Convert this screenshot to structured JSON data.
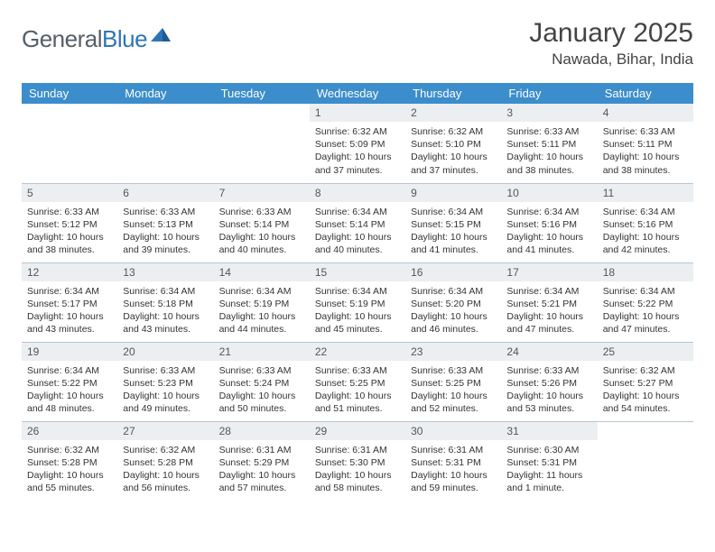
{
  "brand": {
    "name_a": "General",
    "name_b": "Blue"
  },
  "header": {
    "title": "January 2025",
    "location": "Nawada, Bihar, India"
  },
  "styling": {
    "header_bg": "#3c8dcc",
    "header_fg": "#ffffff",
    "daynum_bg": "#eceff1",
    "border_color": "#b8c4d0",
    "body_bg": "#ffffff",
    "title_font_size": 30,
    "location_font_size": 17,
    "cell_font_size": 10.5
  },
  "weekdays": [
    "Sunday",
    "Monday",
    "Tuesday",
    "Wednesday",
    "Thursday",
    "Friday",
    "Saturday"
  ],
  "weeks": [
    [
      {
        "n": "",
        "lines": [
          "",
          "",
          "",
          ""
        ]
      },
      {
        "n": "",
        "lines": [
          "",
          "",
          "",
          ""
        ]
      },
      {
        "n": "",
        "lines": [
          "",
          "",
          "",
          ""
        ]
      },
      {
        "n": "1",
        "lines": [
          "Sunrise: 6:32 AM",
          "Sunset: 5:09 PM",
          "Daylight: 10 hours",
          "and 37 minutes."
        ]
      },
      {
        "n": "2",
        "lines": [
          "Sunrise: 6:32 AM",
          "Sunset: 5:10 PM",
          "Daylight: 10 hours",
          "and 37 minutes."
        ]
      },
      {
        "n": "3",
        "lines": [
          "Sunrise: 6:33 AM",
          "Sunset: 5:11 PM",
          "Daylight: 10 hours",
          "and 38 minutes."
        ]
      },
      {
        "n": "4",
        "lines": [
          "Sunrise: 6:33 AM",
          "Sunset: 5:11 PM",
          "Daylight: 10 hours",
          "and 38 minutes."
        ]
      }
    ],
    [
      {
        "n": "5",
        "lines": [
          "Sunrise: 6:33 AM",
          "Sunset: 5:12 PM",
          "Daylight: 10 hours",
          "and 38 minutes."
        ]
      },
      {
        "n": "6",
        "lines": [
          "Sunrise: 6:33 AM",
          "Sunset: 5:13 PM",
          "Daylight: 10 hours",
          "and 39 minutes."
        ]
      },
      {
        "n": "7",
        "lines": [
          "Sunrise: 6:33 AM",
          "Sunset: 5:14 PM",
          "Daylight: 10 hours",
          "and 40 minutes."
        ]
      },
      {
        "n": "8",
        "lines": [
          "Sunrise: 6:34 AM",
          "Sunset: 5:14 PM",
          "Daylight: 10 hours",
          "and 40 minutes."
        ]
      },
      {
        "n": "9",
        "lines": [
          "Sunrise: 6:34 AM",
          "Sunset: 5:15 PM",
          "Daylight: 10 hours",
          "and 41 minutes."
        ]
      },
      {
        "n": "10",
        "lines": [
          "Sunrise: 6:34 AM",
          "Sunset: 5:16 PM",
          "Daylight: 10 hours",
          "and 41 minutes."
        ]
      },
      {
        "n": "11",
        "lines": [
          "Sunrise: 6:34 AM",
          "Sunset: 5:16 PM",
          "Daylight: 10 hours",
          "and 42 minutes."
        ]
      }
    ],
    [
      {
        "n": "12",
        "lines": [
          "Sunrise: 6:34 AM",
          "Sunset: 5:17 PM",
          "Daylight: 10 hours",
          "and 43 minutes."
        ]
      },
      {
        "n": "13",
        "lines": [
          "Sunrise: 6:34 AM",
          "Sunset: 5:18 PM",
          "Daylight: 10 hours",
          "and 43 minutes."
        ]
      },
      {
        "n": "14",
        "lines": [
          "Sunrise: 6:34 AM",
          "Sunset: 5:19 PM",
          "Daylight: 10 hours",
          "and 44 minutes."
        ]
      },
      {
        "n": "15",
        "lines": [
          "Sunrise: 6:34 AM",
          "Sunset: 5:19 PM",
          "Daylight: 10 hours",
          "and 45 minutes."
        ]
      },
      {
        "n": "16",
        "lines": [
          "Sunrise: 6:34 AM",
          "Sunset: 5:20 PM",
          "Daylight: 10 hours",
          "and 46 minutes."
        ]
      },
      {
        "n": "17",
        "lines": [
          "Sunrise: 6:34 AM",
          "Sunset: 5:21 PM",
          "Daylight: 10 hours",
          "and 47 minutes."
        ]
      },
      {
        "n": "18",
        "lines": [
          "Sunrise: 6:34 AM",
          "Sunset: 5:22 PM",
          "Daylight: 10 hours",
          "and 47 minutes."
        ]
      }
    ],
    [
      {
        "n": "19",
        "lines": [
          "Sunrise: 6:34 AM",
          "Sunset: 5:22 PM",
          "Daylight: 10 hours",
          "and 48 minutes."
        ]
      },
      {
        "n": "20",
        "lines": [
          "Sunrise: 6:33 AM",
          "Sunset: 5:23 PM",
          "Daylight: 10 hours",
          "and 49 minutes."
        ]
      },
      {
        "n": "21",
        "lines": [
          "Sunrise: 6:33 AM",
          "Sunset: 5:24 PM",
          "Daylight: 10 hours",
          "and 50 minutes."
        ]
      },
      {
        "n": "22",
        "lines": [
          "Sunrise: 6:33 AM",
          "Sunset: 5:25 PM",
          "Daylight: 10 hours",
          "and 51 minutes."
        ]
      },
      {
        "n": "23",
        "lines": [
          "Sunrise: 6:33 AM",
          "Sunset: 5:25 PM",
          "Daylight: 10 hours",
          "and 52 minutes."
        ]
      },
      {
        "n": "24",
        "lines": [
          "Sunrise: 6:33 AM",
          "Sunset: 5:26 PM",
          "Daylight: 10 hours",
          "and 53 minutes."
        ]
      },
      {
        "n": "25",
        "lines": [
          "Sunrise: 6:32 AM",
          "Sunset: 5:27 PM",
          "Daylight: 10 hours",
          "and 54 minutes."
        ]
      }
    ],
    [
      {
        "n": "26",
        "lines": [
          "Sunrise: 6:32 AM",
          "Sunset: 5:28 PM",
          "Daylight: 10 hours",
          "and 55 minutes."
        ]
      },
      {
        "n": "27",
        "lines": [
          "Sunrise: 6:32 AM",
          "Sunset: 5:28 PM",
          "Daylight: 10 hours",
          "and 56 minutes."
        ]
      },
      {
        "n": "28",
        "lines": [
          "Sunrise: 6:31 AM",
          "Sunset: 5:29 PM",
          "Daylight: 10 hours",
          "and 57 minutes."
        ]
      },
      {
        "n": "29",
        "lines": [
          "Sunrise: 6:31 AM",
          "Sunset: 5:30 PM",
          "Daylight: 10 hours",
          "and 58 minutes."
        ]
      },
      {
        "n": "30",
        "lines": [
          "Sunrise: 6:31 AM",
          "Sunset: 5:31 PM",
          "Daylight: 10 hours",
          "and 59 minutes."
        ]
      },
      {
        "n": "31",
        "lines": [
          "Sunrise: 6:30 AM",
          "Sunset: 5:31 PM",
          "Daylight: 11 hours",
          "and 1 minute."
        ]
      },
      {
        "n": "",
        "lines": [
          "",
          "",
          "",
          ""
        ]
      }
    ]
  ]
}
